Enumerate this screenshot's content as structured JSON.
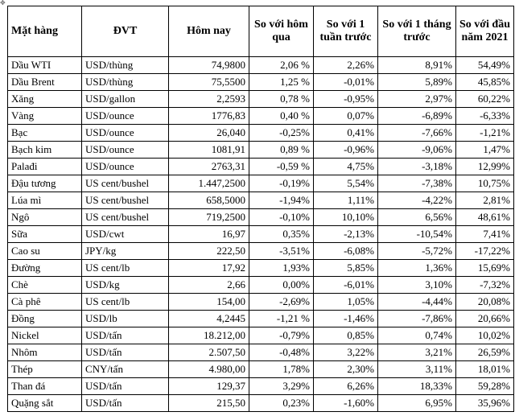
{
  "headers": [
    "Mặt hàng",
    "ĐVT",
    "Hôm nay",
    "So với hôm qua",
    "So với 1 tuần trước",
    "So với 1 tháng trước",
    "So với đầu năm 2021"
  ],
  "rows": [
    [
      "Dầu WTI",
      "USD/thùng",
      "74,9800",
      "2,06 %",
      "2,26%",
      "8,91%",
      "54,49%"
    ],
    [
      "Dầu Brent",
      "USD/thùng",
      "75,5500",
      "1,25 %",
      "-0,01%",
      "5,89%",
      "45,85%"
    ],
    [
      "Xăng",
      "USD/gallon",
      "2,2593",
      "0,78 %",
      "-0,95%",
      "2,97%",
      "60,22%"
    ],
    [
      "Vàng",
      "USD/ounce",
      "1776,83",
      "0,40 %",
      "0,07%",
      "-6,89%",
      "-6,33%"
    ],
    [
      "Bạc",
      "USD/ounce",
      "26,040",
      "-0,25%",
      "0,41%",
      "-7,66%",
      "-1,21%"
    ],
    [
      "Bạch kim",
      "USD/ounce",
      "1081,91",
      "0,89 %",
      "-0,96%",
      "-9,06%",
      "1,47%"
    ],
    [
      "Palađi",
      "USD/ounce",
      "2763,31",
      "-0,59 %",
      "4,75%",
      "-3,18%",
      "12,99%"
    ],
    [
      "Đậu tương",
      "US cent/bushel",
      "1.447,2500",
      "-0,19%",
      "5,54%",
      "-7,38%",
      "10,75%"
    ],
    [
      "Lúa mì",
      "US cent/bushel",
      "658,5000",
      "-1,94%",
      "1,11%",
      "-4,22%",
      "2,81%"
    ],
    [
      "Ngô",
      "US cent/bushel",
      "719,2500",
      "-0,10%",
      "10,10%",
      "6,56%",
      "48,61%"
    ],
    [
      "Sữa",
      "USD/cwt",
      "16,97",
      "0,35%",
      "-2,13%",
      "-10,54%",
      "7,41%"
    ],
    [
      "Cao su",
      "JPY/kg",
      "222,50",
      "-3,51%",
      "-6,08%",
      "-5,72%",
      "-17,22%"
    ],
    [
      "Đường",
      "US cent/lb",
      "17,92",
      "1,93%",
      "5,85%",
      "1,36%",
      "15,69%"
    ],
    [
      "Chè",
      "USD/kg",
      "2,66",
      "0,00%",
      "-6,01%",
      "3,10%",
      "-7,32%"
    ],
    [
      "Cà phê",
      "US cent/lb",
      "154,00",
      "-2,69%",
      "1,05%",
      "-4,44%",
      "20,08%"
    ],
    [
      "Đồng",
      "USD/lb",
      "4,2445",
      "-1,21 %",
      "-1,46%",
      "-7,86%",
      "20,66%"
    ],
    [
      "Nickel",
      "USD/tấn",
      "18.212,00",
      "-0,79%",
      "0,85%",
      "0,74%",
      "10,02%"
    ],
    [
      "Nhôm",
      "USD/tấn",
      "2.507,50",
      "-0,48%",
      "3,22%",
      "3,21%",
      "26,59%"
    ],
    [
      "Thép",
      "CNY/tấn",
      "4.980,00",
      "1,78%",
      "2,30%",
      "3,11%",
      "18,01%"
    ],
    [
      "Than đá",
      "USD/tấn",
      "129,37",
      "3,29%",
      "6,26%",
      "18,33%",
      "59,28%"
    ],
    [
      "Quặng sắt",
      "USD/tấn",
      "215,50",
      "0,23%",
      "-1,60%",
      "6,95%",
      "35,96%"
    ]
  ]
}
